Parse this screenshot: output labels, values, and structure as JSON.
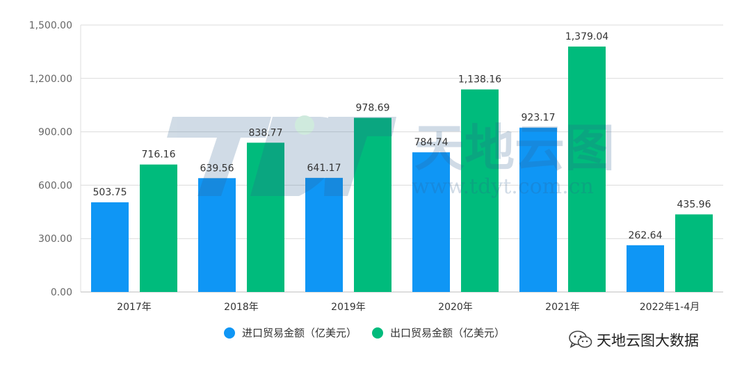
{
  "chart_data": {
    "type": "bar",
    "categories": [
      "2017年",
      "2018年",
      "2019年",
      "2020年",
      "2021年",
      "2022年1-4月"
    ],
    "series": [
      {
        "name": "进口贸易金额（亿美元）",
        "color": "#0F96F5",
        "values": [
          503.75,
          639.56,
          641.17,
          784.74,
          923.17,
          262.64
        ],
        "labels": [
          "503.75",
          "639.56",
          "641.17",
          "784.74",
          "923.17",
          "262.64"
        ]
      },
      {
        "name": "出口贸易金额（亿美元）",
        "color": "#00BB7C",
        "values": [
          716.16,
          838.77,
          978.69,
          1138.16,
          1379.04,
          435.96
        ],
        "labels": [
          "716.16",
          "838.77",
          "978.69",
          "1,138.16",
          "1,379.04",
          "435.96"
        ]
      }
    ],
    "yticks": [
      "0.00",
      "300.00",
      "600.00",
      "900.00",
      "1,200.00",
      "1,500.00"
    ],
    "ylim": [
      0,
      1500
    ],
    "grid": true,
    "legend_position": "bottom"
  },
  "watermark": {
    "logo_text": "TDYT",
    "brand_text": "天地云图",
    "url": "www.tdyt.com.cn"
  },
  "brand": {
    "text": "天地云图大数据",
    "icon": "wechat-icon"
  }
}
